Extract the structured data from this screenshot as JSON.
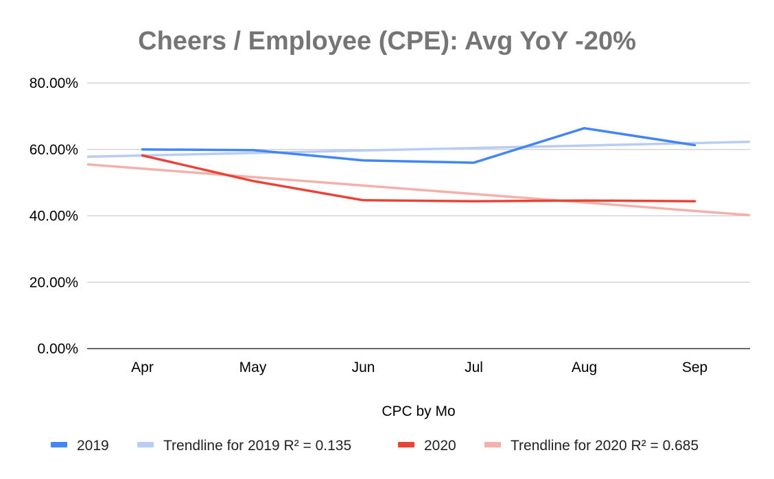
{
  "chart_data": {
    "type": "line",
    "title": "Cheers / Employee (CPE):  Avg YoY -20%",
    "xlabel": "CPC by Mo",
    "ylabel": "",
    "categories": [
      "Apr",
      "May",
      "Jun",
      "Jul",
      "Aug",
      "Sep"
    ],
    "ylim": [
      0,
      0.8
    ],
    "yticks": [
      "0.00%",
      "20.00%",
      "40.00%",
      "60.00%",
      "80.00%"
    ],
    "grid": true,
    "legend_position": "bottom",
    "series": [
      {
        "name": "2019",
        "color": "#4285f4",
        "kind": "data",
        "values": [
          0.6,
          0.598,
          0.567,
          0.56,
          0.664,
          0.613
        ]
      },
      {
        "name": "Trendline for 2019 R² = 0.135",
        "color": "#b7cdf8",
        "kind": "trend",
        "start": 0.578,
        "end": 0.623
      },
      {
        "name": "2020",
        "color": "#ea4335",
        "kind": "data",
        "values": [
          0.582,
          0.505,
          0.447,
          0.444,
          0.446,
          0.444
        ]
      },
      {
        "name": "Trendline for 2020 R² = 0.685",
        "color": "#f4b0aa",
        "kind": "trend",
        "start": 0.555,
        "end": 0.402
      }
    ]
  }
}
